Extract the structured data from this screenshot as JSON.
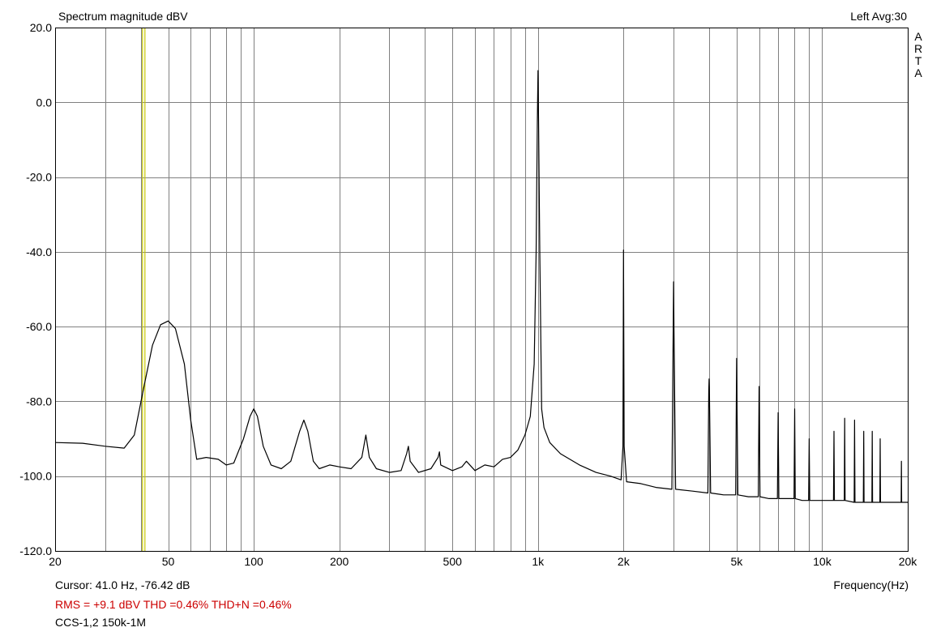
{
  "header": {
    "title": "Spectrum magnitude dBV",
    "channel_avg": "Left  Avg:30",
    "brand_letters": [
      "A",
      "R",
      "T",
      "A"
    ]
  },
  "footer": {
    "cursor_text": "Cursor:   41.0 Hz, -76.42 dB",
    "rms_text": "RMS =   +9.1 dBV   THD =0.46%   THD+N =0.46%",
    "measurement_name": "CCS-1,2 150k-1M"
  },
  "colors": {
    "background": "#ffffff",
    "grid": "#808080",
    "trace": "#000000",
    "cursor": "#c8c800",
    "measurement_text": "#cc0000"
  },
  "chart_data": {
    "type": "line",
    "title": "Spectrum magnitude dBV",
    "xlabel": "Frequency(Hz)",
    "ylabel": "",
    "x_scale": "log",
    "xlim": [
      20,
      20000
    ],
    "ylim": [
      -120,
      20
    ],
    "grid": true,
    "x_ticks": [
      {
        "value": 20,
        "label": "20"
      },
      {
        "value": 50,
        "label": "50"
      },
      {
        "value": 100,
        "label": "100"
      },
      {
        "value": 200,
        "label": "200"
      },
      {
        "value": 500,
        "label": "500"
      },
      {
        "value": 1000,
        "label": "1k"
      },
      {
        "value": 2000,
        "label": "2k"
      },
      {
        "value": 5000,
        "label": "5k"
      },
      {
        "value": 10000,
        "label": "10k"
      },
      {
        "value": 20000,
        "label": "20k"
      }
    ],
    "x_gridlines": [
      30,
      40,
      50,
      60,
      70,
      80,
      90,
      100,
      200,
      300,
      400,
      500,
      600,
      700,
      800,
      900,
      1000,
      2000,
      3000,
      4000,
      5000,
      6000,
      7000,
      8000,
      9000,
      10000
    ],
    "y_ticks": [
      {
        "value": 20,
        "label": "20.0"
      },
      {
        "value": 0,
        "label": "0.0"
      },
      {
        "value": -20,
        "label": "-20.0"
      },
      {
        "value": -40,
        "label": "-40.0"
      },
      {
        "value": -60,
        "label": "-60.0"
      },
      {
        "value": -80,
        "label": "-80.0"
      },
      {
        "value": -100,
        "label": "-100.0"
      },
      {
        "value": -120,
        "label": "-120.0"
      }
    ],
    "cursor": {
      "x": 41.0,
      "y": -76.42
    },
    "series": [
      {
        "values": [
          [
            20,
            -91
          ],
          [
            25,
            -91.2
          ],
          [
            30,
            -92
          ],
          [
            35,
            -92.5
          ],
          [
            38,
            -89
          ],
          [
            41,
            -76.4
          ],
          [
            44,
            -65
          ],
          [
            47,
            -59.5
          ],
          [
            50,
            -58.5
          ],
          [
            53,
            -60.5
          ],
          [
            57,
            -70
          ],
          [
            60,
            -85
          ],
          [
            63,
            -95.5
          ],
          [
            68,
            -95
          ],
          [
            75,
            -95.5
          ],
          [
            80,
            -97
          ],
          [
            85,
            -96.5
          ],
          [
            92,
            -90
          ],
          [
            97,
            -84
          ],
          [
            100,
            -82
          ],
          [
            103,
            -84
          ],
          [
            108,
            -92
          ],
          [
            115,
            -97
          ],
          [
            125,
            -98
          ],
          [
            135,
            -96
          ],
          [
            145,
            -88
          ],
          [
            150,
            -85
          ],
          [
            155,
            -88
          ],
          [
            162,
            -96
          ],
          [
            170,
            -98
          ],
          [
            185,
            -97
          ],
          [
            200,
            -97.5
          ],
          [
            220,
            -98
          ],
          [
            240,
            -95
          ],
          [
            248,
            -89
          ],
          [
            255,
            -95
          ],
          [
            270,
            -98
          ],
          [
            300,
            -99
          ],
          [
            330,
            -98.5
          ],
          [
            345,
            -94
          ],
          [
            350,
            -92
          ],
          [
            355,
            -96
          ],
          [
            380,
            -99
          ],
          [
            420,
            -98
          ],
          [
            445,
            -95
          ],
          [
            450,
            -93.5
          ],
          [
            455,
            -97
          ],
          [
            500,
            -98.5
          ],
          [
            540,
            -97.5
          ],
          [
            560,
            -96
          ],
          [
            600,
            -98.5
          ],
          [
            650,
            -97
          ],
          [
            700,
            -97.5
          ],
          [
            750,
            -95.5
          ],
          [
            800,
            -95
          ],
          [
            850,
            -93
          ],
          [
            900,
            -89
          ],
          [
            940,
            -84
          ],
          [
            970,
            -70
          ],
          [
            985,
            -40
          ],
          [
            995,
            -5
          ],
          [
            1000,
            8.5
          ],
          [
            1005,
            -5
          ],
          [
            1015,
            -40
          ],
          [
            1030,
            -82
          ],
          [
            1050,
            -87
          ],
          [
            1100,
            -91
          ],
          [
            1200,
            -94
          ],
          [
            1400,
            -97
          ],
          [
            1600,
            -99
          ],
          [
            1800,
            -100
          ],
          [
            1960,
            -101
          ],
          [
            1990,
            -92
          ],
          [
            2000,
            -39.5
          ],
          [
            2010,
            -92
          ],
          [
            2050,
            -101.5
          ],
          [
            2300,
            -102
          ],
          [
            2600,
            -103
          ],
          [
            2960,
            -103.5
          ],
          [
            2990,
            -61
          ],
          [
            3000,
            -48
          ],
          [
            3010,
            -61
          ],
          [
            3050,
            -103.5
          ],
          [
            3500,
            -104
          ],
          [
            3960,
            -104.5
          ],
          [
            3990,
            -77
          ],
          [
            4000,
            -74
          ],
          [
            4010,
            -77
          ],
          [
            4050,
            -104.5
          ],
          [
            4500,
            -105
          ],
          [
            4960,
            -105
          ],
          [
            4990,
            -77
          ],
          [
            5000,
            -68.5
          ],
          [
            5010,
            -77
          ],
          [
            5050,
            -105
          ],
          [
            5500,
            -105.5
          ],
          [
            5960,
            -105.5
          ],
          [
            6000,
            -76
          ],
          [
            6040,
            -105.5
          ],
          [
            6500,
            -106
          ],
          [
            6960,
            -106
          ],
          [
            7000,
            -83
          ],
          [
            7040,
            -106
          ],
          [
            7500,
            -106
          ],
          [
            7960,
            -106
          ],
          [
            8000,
            -82
          ],
          [
            8040,
            -106
          ],
          [
            8500,
            -106.5
          ],
          [
            8960,
            -106.5
          ],
          [
            9000,
            -90
          ],
          [
            9040,
            -106.5
          ],
          [
            9500,
            -106.5
          ],
          [
            10000,
            -106.5
          ],
          [
            10960,
            -106.5
          ],
          [
            11000,
            -88
          ],
          [
            11040,
            -106.5
          ],
          [
            11960,
            -106.5
          ],
          [
            12000,
            -84.5
          ],
          [
            12040,
            -106.5
          ],
          [
            12960,
            -107
          ],
          [
            13000,
            -85
          ],
          [
            13040,
            -107
          ],
          [
            13960,
            -107
          ],
          [
            14000,
            -88
          ],
          [
            14040,
            -107
          ],
          [
            14960,
            -107
          ],
          [
            15000,
            -88
          ],
          [
            15040,
            -107
          ],
          [
            15960,
            -107
          ],
          [
            16000,
            -90
          ],
          [
            16040,
            -107
          ],
          [
            17000,
            -107
          ],
          [
            18000,
            -107
          ],
          [
            18960,
            -107
          ],
          [
            19000,
            -96
          ],
          [
            19040,
            -107
          ],
          [
            20000,
            -107
          ]
        ]
      }
    ]
  }
}
